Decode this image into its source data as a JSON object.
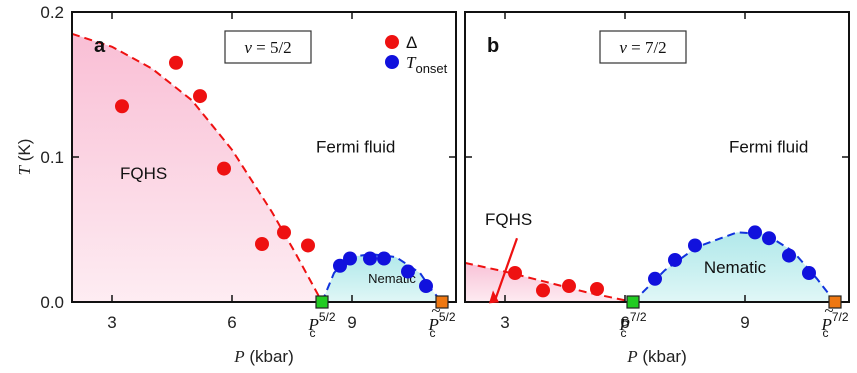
{
  "chart_data": [
    {
      "type": "scatter",
      "panel": "a",
      "nu_label": "ν = 5/2",
      "xlabel": "P (kbar)",
      "ylabel": "T (K)",
      "xlim": [
        2,
        11.6
      ],
      "ylim": [
        0,
        0.2
      ],
      "xticks": [
        "3",
        "6",
        "9"
      ],
      "yticks": [
        "0.0",
        "0.1",
        "0.2"
      ],
      "regions": {
        "fqhs": "FQHS",
        "fermi": "Fermi fluid",
        "nematic": "Nematic"
      },
      "legend": {
        "position": "top-right",
        "delta": "Δ",
        "tonset_main": "T",
        "tonset_sub": "onset"
      },
      "critical_points": [
        {
          "name": "Pc",
          "sub": "c",
          "sup": "5/2",
          "tilde": false,
          "x": 8.25,
          "color": "#22cc22"
        },
        {
          "name": "Pc-tilde",
          "sub": "c",
          "sup": "5/2",
          "tilde": true,
          "x": 11.25,
          "color": "#ee7711"
        }
      ],
      "series": [
        {
          "name": "Δ",
          "color": "#ee1111",
          "x": [
            3.25,
            4.6,
            5.2,
            5.8,
            6.75,
            7.3,
            7.9
          ],
          "y": [
            0.135,
            0.165,
            0.142,
            0.092,
            0.04,
            0.048,
            0.039
          ]
        },
        {
          "name": "T_onset",
          "color": "#1111dd",
          "x": [
            8.7,
            8.95,
            9.45,
            9.8,
            10.4,
            10.85
          ],
          "y": [
            0.025,
            0.03,
            0.03,
            0.03,
            0.021,
            0.011
          ]
        }
      ],
      "fqhs_boundary": {
        "x": [
          2,
          3,
          4,
          5,
          6,
          7,
          7.6,
          8.25
        ],
        "y": [
          0.185,
          0.176,
          0.161,
          0.139,
          0.105,
          0.062,
          0.033,
          0
        ]
      },
      "nematic_boundary": {
        "x": [
          8.25,
          8.55,
          8.9,
          9.5,
          10.1,
          10.7,
          11.0,
          11.25
        ],
        "y": [
          0,
          0.02,
          0.031,
          0.033,
          0.031,
          0.02,
          0.008,
          0
        ]
      }
    },
    {
      "type": "scatter",
      "panel": "b",
      "nu_label": "ν = 7/2",
      "xlabel": "P (kbar)",
      "ylabel": "",
      "xlim": [
        2,
        11.6
      ],
      "ylim": [
        0,
        0.2
      ],
      "xticks": [
        "3",
        "6",
        "9"
      ],
      "regions": {
        "fqhs": "FQHS",
        "fermi": "Fermi fluid",
        "nematic": "Nematic"
      },
      "critical_points": [
        {
          "name": "Pc",
          "sub": "c",
          "sup": "7/2",
          "tilde": false,
          "x": 6.2,
          "color": "#22cc22"
        },
        {
          "name": "Pc-tilde",
          "sub": "c",
          "sup": "7/2",
          "tilde": true,
          "x": 11.25,
          "color": "#ee7711"
        }
      ],
      "series": [
        {
          "name": "Δ",
          "color": "#ee1111",
          "x": [
            3.25,
            3.95,
            4.6,
            5.3
          ],
          "y": [
            0.02,
            0.008,
            0.011,
            0.009
          ]
        },
        {
          "name": "T_onset",
          "color": "#1111dd",
          "x": [
            6.75,
            7.25,
            7.75,
            9.25,
            9.6,
            10.1,
            10.6
          ],
          "y": [
            0.016,
            0.029,
            0.039,
            0.048,
            0.044,
            0.032,
            0.02
          ]
        }
      ],
      "fqhs_boundary": {
        "x": [
          2,
          3,
          4,
          5,
          6.2
        ],
        "y": [
          0.027,
          0.021,
          0.014,
          0.007,
          0
        ]
      },
      "nematic_boundary": {
        "x": [
          6.2,
          7.0,
          7.8,
          8.8,
          9.5,
          10.2,
          10.8,
          11.25
        ],
        "y": [
          0,
          0.022,
          0.038,
          0.048,
          0.047,
          0.035,
          0.016,
          0
        ]
      }
    }
  ]
}
